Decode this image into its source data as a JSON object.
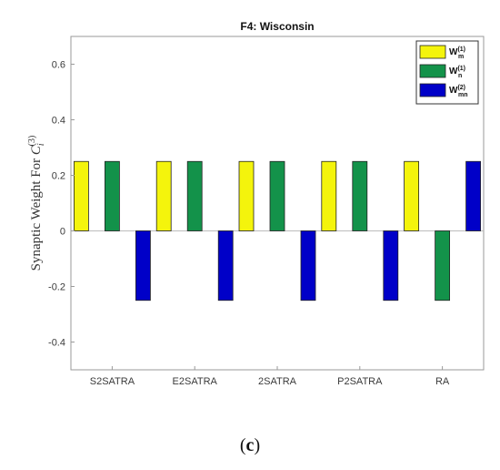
{
  "chart_data": {
    "type": "bar",
    "title": "F4: Wisconsin",
    "ylabel_prefix": "Synaptic Weight For ",
    "ylabel_symbol": "C",
    "ylabel_sub": "i",
    "ylabel_sup": "(3)",
    "categories": [
      "S2SATRA",
      "E2SATRA",
      "2SATRA",
      "P2SATRA",
      "RA"
    ],
    "series": [
      {
        "name_base": "W",
        "name_sub": "m",
        "name_sup": "(1)",
        "color": "#f4f40c",
        "values": [
          0.25,
          0.25,
          0.25,
          0.25,
          0.25
        ]
      },
      {
        "name_base": "W",
        "name_sub": "n",
        "name_sup": "(1)",
        "color": "#13924a",
        "values": [
          0.25,
          0.25,
          0.25,
          0.25,
          -0.25
        ]
      },
      {
        "name_base": "W",
        "name_sub": "mn",
        "name_sup": "(2)",
        "color": "#0000c8",
        "values": [
          -0.25,
          -0.25,
          -0.25,
          -0.25,
          0.25
        ]
      }
    ],
    "yticks": [
      "-0.4",
      "-0.2",
      "0",
      "0.2",
      "0.4",
      "0.6"
    ],
    "ylim": [
      -0.5,
      0.7
    ],
    "legend_position": "top-right",
    "grid": false
  },
  "caption": {
    "open": "(",
    "letter": "c",
    "close": ")"
  }
}
